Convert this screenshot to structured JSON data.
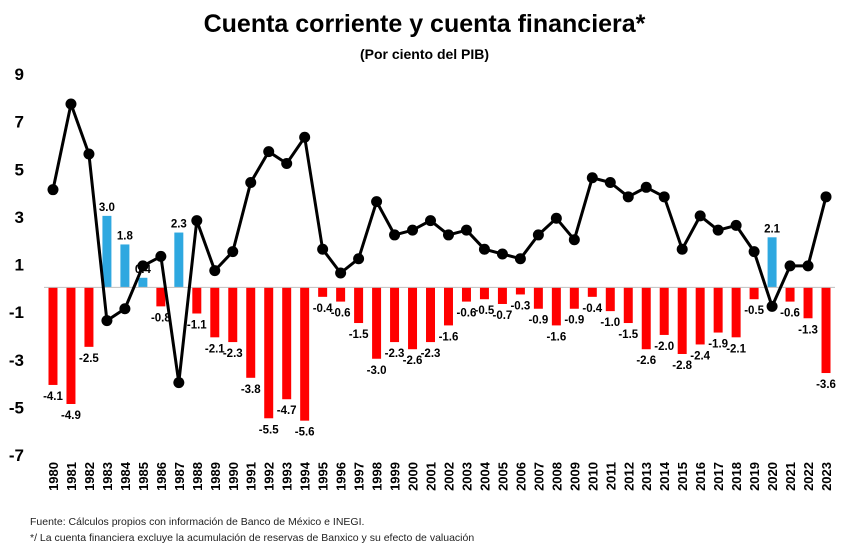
{
  "chart_data": {
    "type": "bar",
    "title": "Cuenta corriente y cuenta financiera*",
    "subtitle": "(Por ciento del PIB)",
    "xlabel": "",
    "ylabel": "",
    "ylim": [
      -7,
      9
    ],
    "yticks": [
      9,
      7,
      5,
      3,
      1,
      -1,
      -3,
      -5,
      -7
    ],
    "grid": false,
    "legend": "none",
    "categories": [
      "1980",
      "1981",
      "1982",
      "1983",
      "1984",
      "1985",
      "1986",
      "1987",
      "1988",
      "1989",
      "1990",
      "1991",
      "1992",
      "1993",
      "1994",
      "1995",
      "1996",
      "1997",
      "1998",
      "1999",
      "2000",
      "2001",
      "2002",
      "2003",
      "2004",
      "2005",
      "2006",
      "2007",
      "2008",
      "2009",
      "2010",
      "2011",
      "2012",
      "2013",
      "2014",
      "2015",
      "2016",
      "2017",
      "2018",
      "2019",
      "2020",
      "2021",
      "2022",
      "2023"
    ],
    "series": [
      {
        "type": "bar",
        "values": [
          -4.1,
          -4.9,
          -2.5,
          3.0,
          1.8,
          0.4,
          -0.8,
          2.3,
          -1.1,
          -2.1,
          -2.3,
          -3.8,
          -5.5,
          -4.7,
          -5.6,
          -0.4,
          -0.6,
          -1.5,
          -3.0,
          -2.3,
          -2.6,
          -2.3,
          -1.6,
          -0.6,
          -0.5,
          -0.7,
          -0.3,
          -0.9,
          -1.6,
          -0.9,
          -0.4,
          -1.0,
          -1.5,
          -2.6,
          -2.0,
          -2.8,
          -2.4,
          -1.9,
          -2.1,
          -0.5,
          2.1,
          -0.6,
          -1.3,
          -3.6
        ],
        "labels": [
          "-4.1",
          "-4.9",
          "-2.5",
          "3.0",
          "1.8",
          "0.4",
          "-0.8",
          "2.3",
          "-1.1",
          "-2.1",
          "-2.3",
          "-3.8",
          "-5.5",
          "-4.7",
          "-5.6",
          "-0.4",
          "-0.6",
          "-1.5",
          "-3.0",
          "-2.3",
          "-2.6",
          "-2.3",
          "-1.6",
          "-0.6",
          "-0.5",
          "-0.7",
          "-0.3",
          "-0.9",
          "-1.6",
          "-0.9",
          "-0.4",
          "-1.0",
          "-1.5",
          "-2.6",
          "-2.0",
          "-2.8",
          "-2.4",
          "-1.9",
          "-2.1",
          "-0.5",
          "2.1",
          "-0.6",
          "-1.3",
          "-3.6"
        ],
        "color_negative": "#ff0000",
        "color_positive": "#2ea8e0"
      },
      {
        "type": "line",
        "values": [
          4.1,
          7.7,
          5.6,
          -1.4,
          -0.9,
          0.9,
          1.3,
          -4.0,
          2.8,
          0.7,
          1.5,
          4.4,
          5.7,
          5.2,
          6.3,
          1.6,
          0.6,
          1.2,
          3.6,
          2.2,
          2.4,
          2.8,
          2.2,
          2.4,
          1.6,
          1.4,
          1.2,
          2.2,
          2.9,
          2.0,
          4.6,
          4.4,
          3.8,
          4.2,
          3.8,
          1.6,
          3.0,
          2.4,
          2.6,
          1.5,
          -0.8,
          0.9,
          0.9,
          3.8
        ],
        "color": "#000000"
      }
    ]
  },
  "footnotes": {
    "source": "Fuente: Cálculos propios con información de Banco de México e INEGI.",
    "star": "*/ La cuenta financiera excluye la acumulación de reservas de Banxico y su efecto de valuación"
  }
}
